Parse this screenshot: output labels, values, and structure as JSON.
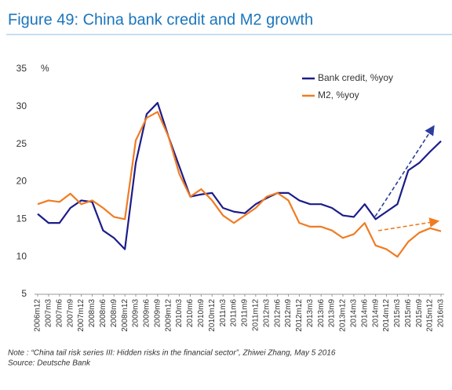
{
  "chart_data": {
    "type": "line",
    "title": "Figure 49: China bank credit and M2 growth",
    "y_unit": "%",
    "categories": [
      "2006m12",
      "2007m3",
      "2007m6",
      "2007m9",
      "2007m12",
      "2008m3",
      "2008m6",
      "2008m9",
      "2008m12",
      "2009m3",
      "2009m6",
      "2009m9",
      "2009m12",
      "2010m3",
      "2010m6",
      "2010m9",
      "2010m12",
      "2011m3",
      "2011m6",
      "2011m9",
      "2011m12",
      "2012m3",
      "2012m6",
      "2012m9",
      "2012m12",
      "2013m3",
      "2013m6",
      "2013m9",
      "2013m12",
      "2014m3",
      "2014m6",
      "2014m9",
      "2014m12",
      "2015m3",
      "2015m6",
      "2015m9",
      "2015m12",
      "2016m3"
    ],
    "series": [
      {
        "name": "Bank credit, %yoy",
        "color": "#1c1c8a",
        "values": [
          15.7,
          14.5,
          14.5,
          16.5,
          17.5,
          17.3,
          13.5,
          12.5,
          11.0,
          22.5,
          29.0,
          30.5,
          26.0,
          22.0,
          18.0,
          18.3,
          18.5,
          16.5,
          16.0,
          15.8,
          17.0,
          17.8,
          18.5,
          18.5,
          17.5,
          17.0,
          17.0,
          16.5,
          15.5,
          15.3,
          17.0,
          15.0,
          16.0,
          17.0,
          21.5,
          22.5,
          24.0,
          25.4
        ]
      },
      {
        "name": "M2, %yoy",
        "color": "#f07c22",
        "values": [
          17.0,
          17.5,
          17.3,
          18.4,
          17.0,
          17.5,
          16.5,
          15.3,
          15.0,
          25.5,
          28.5,
          29.3,
          26.0,
          21.0,
          18.0,
          19.0,
          17.5,
          15.5,
          14.5,
          15.5,
          16.5,
          18.0,
          18.5,
          17.5,
          14.5,
          14.0,
          14.0,
          13.5,
          12.5,
          13.0,
          14.5,
          11.5,
          11.0,
          10.0,
          12.0,
          13.2,
          13.8,
          13.4
        ]
      }
    ],
    "ylim": [
      5,
      35
    ],
    "yticks": [
      5,
      10,
      15,
      20,
      25,
      30,
      35
    ],
    "legend": "top-right",
    "notes": [
      "Note : “China tail risk series III: Hidden risks in the financial sector”, Zhiwei Zhang, May 5 2016",
      "Source: Deutsche Bank"
    ]
  }
}
